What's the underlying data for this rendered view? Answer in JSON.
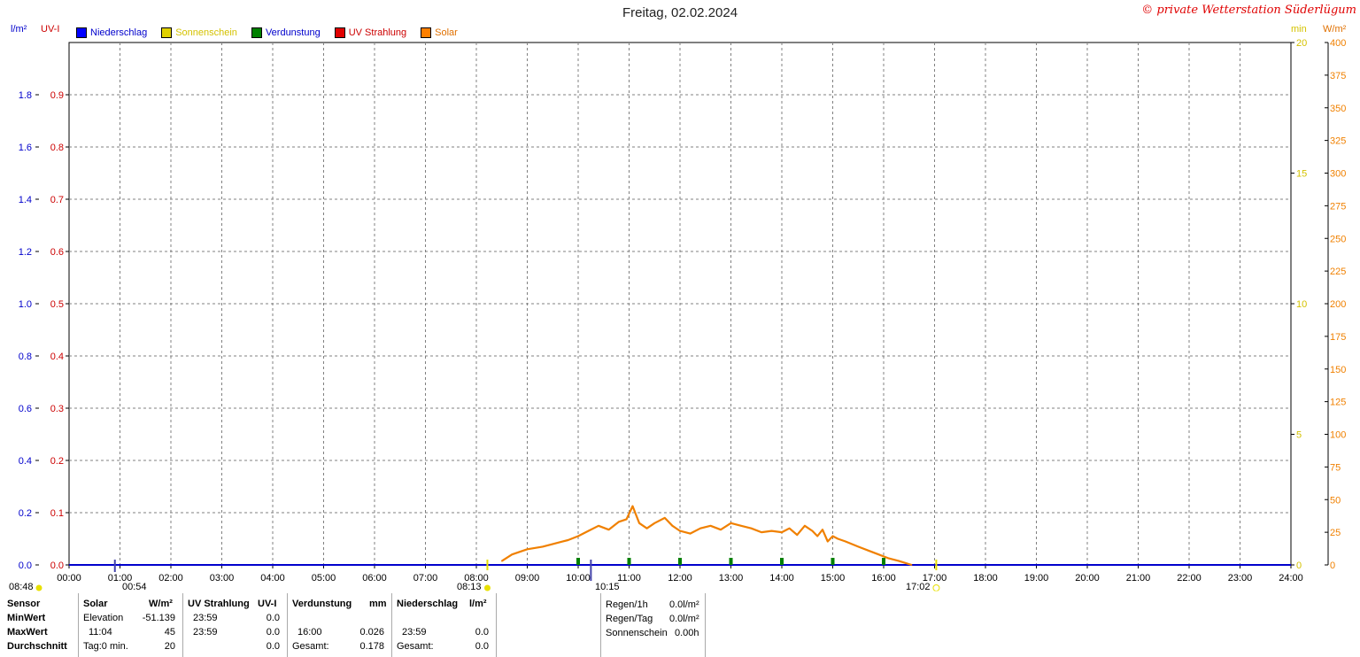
{
  "title": "Freitag, 02.02.2024",
  "station": "© private Wetterstation Süderlügum",
  "axis_heads": {
    "rain": "l/m²",
    "uv": "UV-I",
    "sun": "min",
    "solar": "W/m²"
  },
  "legend": [
    {
      "label": "Niederschlag",
      "swatch": "#0000ff",
      "text_color": "#0000cc"
    },
    {
      "label": "Sonnenschein",
      "swatch": "#e0d000",
      "text_color": "#d4c200"
    },
    {
      "label": "Verdunstung",
      "swatch": "#008000",
      "text_color": "#0000cc"
    },
    {
      "label": "UV Strahlung",
      "swatch": "#e00000",
      "text_color": "#cc0000"
    },
    {
      "label": "Solar",
      "swatch": "#ff8000",
      "text_color": "#e07000"
    }
  ],
  "colors": {
    "rain": "#0000cc",
    "uv": "#cc0000",
    "sun": "#d4c200",
    "solar": "#f08000",
    "evap": "#008000",
    "grid": "#808080"
  },
  "events": {
    "moonset": "08:48",
    "moonrise": "00:54",
    "sunrise": "08:13",
    "noon": "10:15",
    "sunset": "17:02"
  },
  "chart_data": {
    "type": "line",
    "x_ticks": [
      "00:00",
      "01:00",
      "02:00",
      "03:00",
      "04:00",
      "05:00",
      "06:00",
      "07:00",
      "08:00",
      "09:00",
      "10:00",
      "11:00",
      "12:00",
      "13:00",
      "14:00",
      "15:00",
      "16:00",
      "17:00",
      "18:00",
      "19:00",
      "20:00",
      "21:00",
      "22:00",
      "23:00",
      "24:00"
    ],
    "y_axes": {
      "rain": {
        "label": "l/m²",
        "ticks": [
          "0.0",
          "0.2",
          "0.4",
          "0.6",
          "0.8",
          "1.0",
          "1.2",
          "1.4",
          "1.6",
          "1.8"
        ],
        "range": [
          0,
          2.0
        ]
      },
      "uv": {
        "label": "UV-I",
        "ticks": [
          "0.0",
          "0.1",
          "0.2",
          "0.3",
          "0.4",
          "0.5",
          "0.6",
          "0.7",
          "0.8",
          "0.9"
        ],
        "range": [
          0,
          1.0
        ]
      },
      "sun": {
        "label": "min",
        "ticks": [
          "0",
          "5",
          "10",
          "15",
          "20"
        ],
        "range": [
          0,
          20
        ]
      },
      "solar": {
        "label": "W/m²",
        "ticks": [
          "0",
          "25",
          "50",
          "75",
          "100",
          "125",
          "150",
          "175",
          "200",
          "225",
          "250",
          "275",
          "300",
          "325",
          "350",
          "375",
          "400"
        ],
        "range": [
          0,
          400
        ]
      }
    },
    "series": [
      {
        "name": "Solar",
        "axis": "solar",
        "hours": [
          8.5,
          8.7,
          9.0,
          9.3,
          9.5,
          9.8,
          10.0,
          10.2,
          10.4,
          10.6,
          10.8,
          10.95,
          11.07,
          11.2,
          11.35,
          11.5,
          11.7,
          11.85,
          12.0,
          12.2,
          12.4,
          12.6,
          12.8,
          13.0,
          13.2,
          13.4,
          13.6,
          13.8,
          14.0,
          14.15,
          14.3,
          14.45,
          14.6,
          14.7,
          14.8,
          14.9,
          15.0,
          15.1,
          15.25,
          15.5,
          15.7,
          15.9,
          16.1,
          16.3,
          16.55
        ],
        "values": [
          3,
          8,
          12,
          14,
          16,
          19,
          22,
          26,
          30,
          27,
          33,
          35,
          45,
          32,
          28,
          32,
          36,
          30,
          26,
          24,
          28,
          30,
          27,
          32,
          30,
          28,
          25,
          26,
          25,
          28,
          23,
          30,
          26,
          22,
          27,
          18,
          22,
          20,
          18,
          14,
          11,
          8,
          5,
          3,
          0
        ]
      },
      {
        "name": "Verdunstung",
        "axis": "sun",
        "marks": [
          "10:00",
          "11:00",
          "12:00",
          "13:00",
          "14:00",
          "15:00",
          "16:00"
        ]
      }
    ]
  },
  "stats": {
    "headers": {
      "sensor": "Sensor",
      "solar": "Solar",
      "solar_unit": "W/m²",
      "uv": "UV Strahlung",
      "uv_unit": "UV-I",
      "evap": "Verdunstung",
      "evap_unit": "mm",
      "rain": "Niederschlag",
      "rain_unit": "l/m²"
    },
    "rows": [
      {
        "label": "MinWert",
        "solar_time": "Elevation",
        "solar_val": "-51.139",
        "uv_time": "23:59",
        "uv_val": "0.0",
        "evap_time": "",
        "evap_val": "",
        "rain_time": "",
        "rain_val": ""
      },
      {
        "label": "MaxWert",
        "solar_time": "11:04",
        "solar_val": "45",
        "uv_time": "23:59",
        "uv_val": "0.0",
        "evap_time": "16:00",
        "evap_val": "0.026",
        "rain_time": "23:59",
        "rain_val": "0.0"
      },
      {
        "label": "Durchschnitt",
        "solar_time": "Tag:0 min.",
        "solar_val": "20",
        "uv_time": "",
        "uv_val": "0.0",
        "evap_time": "Gesamt:",
        "evap_val": "0.178",
        "rain_time": "Gesamt:",
        "rain_val": "0.0"
      }
    ],
    "extra": [
      {
        "label": "Regen/1h",
        "value": "0.0l/m²"
      },
      {
        "label": "Regen/Tag",
        "value": "0.0l/m²"
      },
      {
        "label": "Sonnenschein",
        "value": "0.00h"
      }
    ]
  }
}
